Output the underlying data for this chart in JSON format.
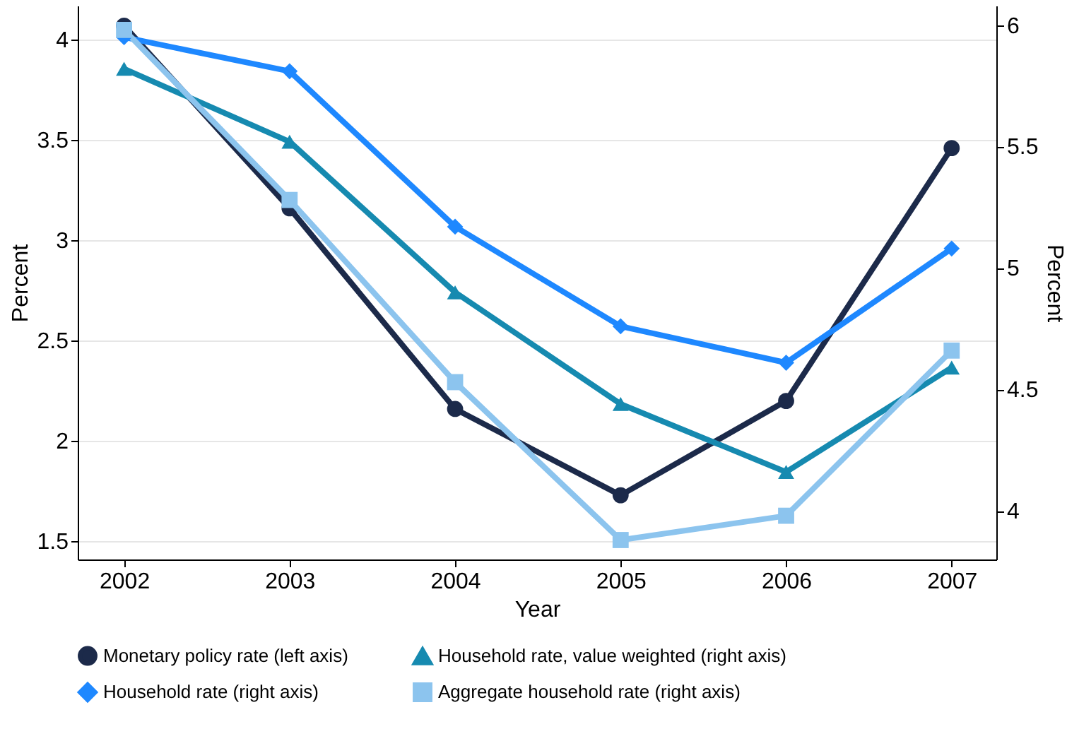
{
  "chart_data": {
    "type": "line",
    "xlabel": "Year",
    "ylabel": "Percent",
    "y2label": "Percent",
    "x": [
      2002,
      2003,
      2004,
      2005,
      2006,
      2007
    ],
    "xlim": [
      2001.72,
      2007.27
    ],
    "xticks": [
      2002,
      2003,
      2004,
      2005,
      2006,
      2007
    ],
    "ylim": [
      1.41,
      4.17
    ],
    "yticks": [
      1.5,
      2,
      2.5,
      3,
      3.5,
      4
    ],
    "y2lim": [
      3.8,
      6.08
    ],
    "y2ticks": [
      4,
      4.5,
      5,
      5.5,
      6
    ],
    "grid": "y",
    "legend": "bottom",
    "line_style": "solid",
    "series": [
      {
        "name": "Monetary policy rate (left axis)",
        "color": "#1c2a4a",
        "marker": "circle",
        "values": [
          4.07,
          3.16,
          2.16,
          1.73,
          2.2,
          3.46
        ]
      },
      {
        "name": "Household rate, value weighted (right axis)",
        "color": "#168ab0",
        "marker": "triangle",
        "axis": "y2",
        "values": [
          5.82,
          5.52,
          4.9,
          4.44,
          4.16,
          4.59
        ]
      },
      {
        "name": "Household rate (right axis)",
        "color": "#1e88ff",
        "marker": "diamond",
        "axis": "y2",
        "values": [
          5.95,
          5.81,
          5.17,
          4.76,
          4.61,
          5.08
        ]
      },
      {
        "name": "Aggregate household rate (right axis)",
        "color": "#8cc4ee",
        "marker": "square",
        "axis": "y2",
        "values": [
          5.98,
          5.28,
          4.53,
          3.88,
          3.98,
          4.66
        ]
      }
    ]
  }
}
